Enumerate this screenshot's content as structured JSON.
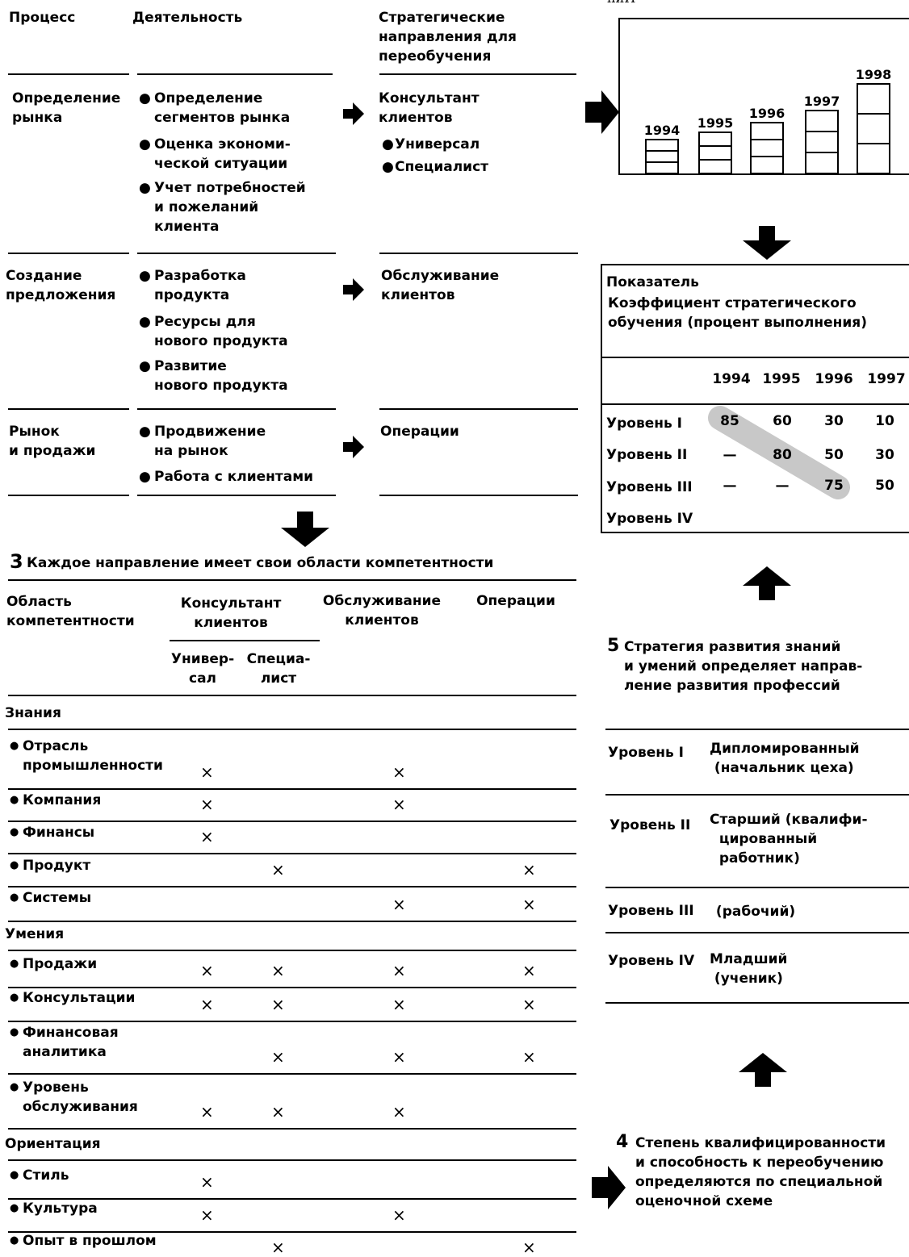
{
  "top_cutoff": "ниИ",
  "top_table": {
    "headers": [
      "Процесс",
      "Деятельность",
      "Стратегические\nнаправления для\nпереобучения"
    ],
    "rows": [
      {
        "process": "Определение\nрынка",
        "activities": [
          "Определение\nсегментов рынка",
          "Оценка экономи-\nческой ситуации",
          "Учет потребностей\nи пожеланий\nклиента"
        ],
        "direction": "Консультант\nклиентов",
        "subdirections": [
          "Универсал",
          "Специалист"
        ]
      },
      {
        "process": "Создание\nпредложения",
        "activities": [
          "Разработка\nпродукта",
          "Ресурсы для\nнового продукта",
          "Развитие\nнового продукта"
        ],
        "direction": "Обслуживание\nклиентов",
        "subdirections": []
      },
      {
        "process": "Рынок\nи продажи",
        "activities": [
          "Продвижение\nна рынок",
          "Работа с клиентами"
        ],
        "direction": "Операции",
        "subdirections": []
      }
    ]
  },
  "bar_chart": {
    "years": [
      "1994",
      "1995",
      "1996",
      "1997",
      "1998"
    ],
    "segments": [
      3,
      3,
      3,
      3,
      3
    ]
  },
  "indicator_table": {
    "title": "Показатель",
    "subtitle": "Коэффициент стратегического\nобучения (процент выполнения)",
    "years": [
      "1994",
      "1995",
      "1996",
      "1997"
    ],
    "rows": [
      {
        "label": "Уровень I",
        "values": [
          "85",
          "60",
          "30",
          "10"
        ]
      },
      {
        "label": "Уровень II",
        "values": [
          "—",
          "80",
          "50",
          "30"
        ]
      },
      {
        "label": "Уровень III",
        "values": [
          "—",
          "—",
          "75",
          "50"
        ]
      },
      {
        "label": "Уровень IV",
        "values": [
          "",
          "",
          "",
          ""
        ]
      }
    ]
  },
  "section3": {
    "number": "3",
    "title": "Каждое направление имеет свои области компетентности",
    "headers": {
      "area": "Область\nкомпетентности",
      "consultant": "Консультант\nклиентов",
      "universal": "Универ-\nсал",
      "specialist": "Специа-\nлист",
      "service": "Обслуживание\nклиентов",
      "operations": "Операции"
    },
    "groups": [
      {
        "name": "Знания",
        "items": [
          {
            "label": "Отрасль\nпромышленности",
            "marks": [
              true,
              false,
              true,
              false
            ]
          },
          {
            "label": "Компания",
            "marks": [
              true,
              false,
              true,
              false
            ]
          },
          {
            "label": "Финансы",
            "marks": [
              true,
              false,
              false,
              false
            ]
          },
          {
            "label": "Продукт",
            "marks": [
              false,
              true,
              false,
              true
            ]
          },
          {
            "label": "Системы",
            "marks": [
              false,
              false,
              true,
              true
            ]
          }
        ]
      },
      {
        "name": "Умения",
        "items": [
          {
            "label": "Продажи",
            "marks": [
              true,
              true,
              true,
              true
            ]
          },
          {
            "label": "Консультации",
            "marks": [
              true,
              true,
              true,
              true
            ]
          },
          {
            "label": "Финансовая\nаналитика",
            "marks": [
              false,
              true,
              true,
              true
            ]
          },
          {
            "label": "Уровень\nобслуживания",
            "marks": [
              true,
              true,
              true,
              false
            ]
          }
        ]
      },
      {
        "name": "Ориентация",
        "items": [
          {
            "label": "Стиль",
            "marks": [
              true,
              false,
              false,
              false
            ]
          },
          {
            "label": "Культура",
            "marks": [
              true,
              false,
              true,
              false
            ]
          },
          {
            "label": "Опыт в прошлом",
            "marks": [
              false,
              true,
              false,
              true
            ]
          }
        ]
      }
    ],
    "mark": "×"
  },
  "section5": {
    "number": "5",
    "title": "Стратегия развития знаний\nи умений определяет направ-\nление развития профессий"
  },
  "levels": [
    {
      "label": "Уровень I",
      "desc": "Дипломированный\n (начальник цеха)"
    },
    {
      "label": "Уровень II",
      "desc": "Старший (квалифи-\n  цированный\n  работник)"
    },
    {
      "label": "Уровень III",
      "desc": " (рабочий)"
    },
    {
      "label": "Уровень IV",
      "desc": "Младший\n (ученик)"
    }
  ],
  "section4": {
    "number": "4",
    "title": "Степень квалифицированности\nи способность к переобучению\nопределяются по специальной\nоценочной схеме"
  }
}
